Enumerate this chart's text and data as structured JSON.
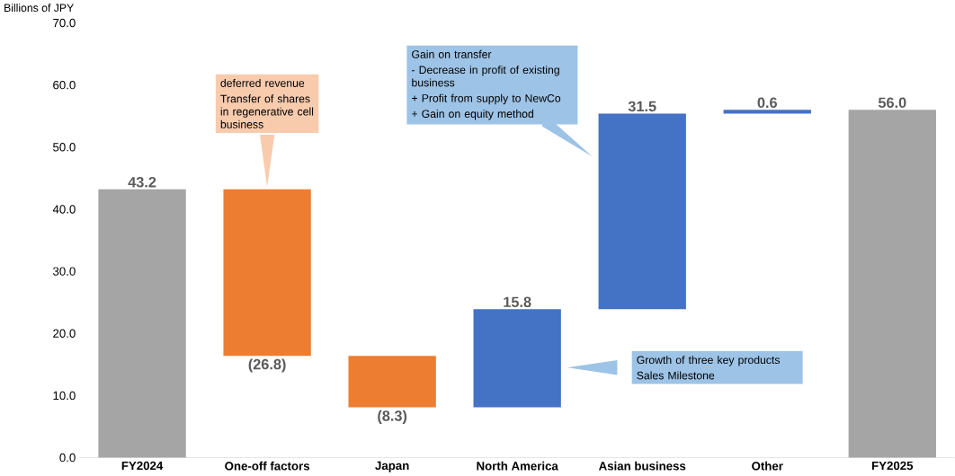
{
  "chart_data": {
    "type": "bar",
    "ylabel": "Billions of JPY",
    "categories": [
      "FY2024",
      "One-off factors",
      "Japan",
      "North America",
      "Asian business",
      "Other",
      "FY2025"
    ],
    "values": [
      43.2,
      -26.8,
      -8.3,
      15.8,
      31.5,
      0.6,
      56.0
    ],
    "base": [
      0,
      43.2,
      16.4,
      8.1,
      23.9,
      55.4,
      0
    ],
    "colors": [
      "#a5a5a5",
      "#ed7d31",
      "#ed7d31",
      "#4472c4",
      "#4472c4",
      "#4472c4",
      "#a5a5a5"
    ],
    "value_labels": [
      "43.2",
      "(26.8)",
      "(8.3)",
      "15.8",
      "31.5",
      "0.6",
      "56.0"
    ],
    "ylim": [
      0,
      70
    ],
    "yticks": [
      {
        "value": 0,
        "label": "0.0"
      },
      {
        "value": 10,
        "label": "10.0"
      },
      {
        "value": 20,
        "label": "20.0"
      },
      {
        "value": 30,
        "label": "30.0"
      },
      {
        "value": 40,
        "label": "40.0"
      },
      {
        "value": 50,
        "label": "50.0"
      },
      {
        "value": 60,
        "label": "60.0"
      },
      {
        "value": 70,
        "label": "70.0"
      }
    ],
    "annotations": [
      "deferred revenue",
      "Transfer of shares in regenerative cell business",
      "Gain on transfer",
      "-  Decrease in profit of existing business",
      "+  Profit from supply to NewCo",
      "+  Gain on equity method",
      "Growth of three key products",
      "Sales Milestone"
    ]
  }
}
